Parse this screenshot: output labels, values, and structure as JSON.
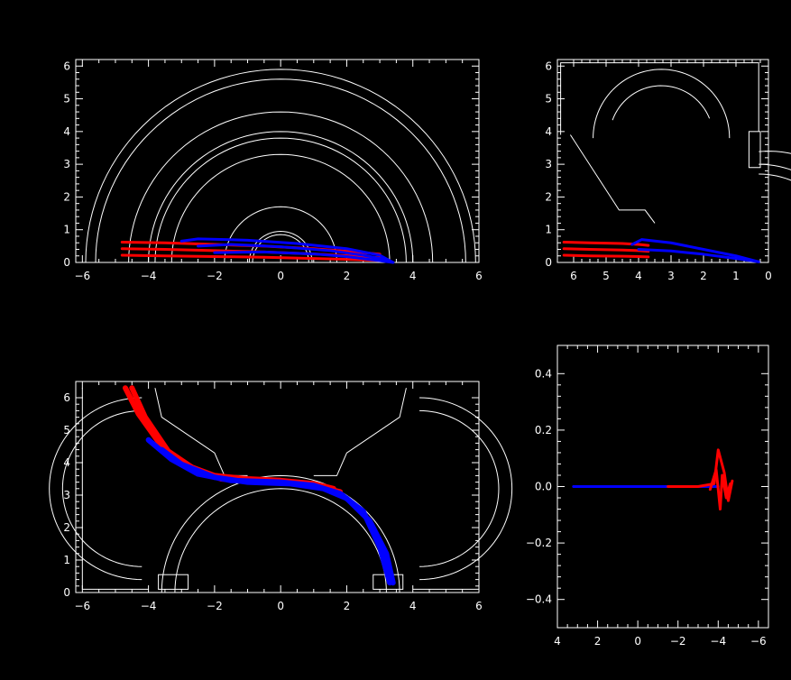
{
  "chart_data": [
    {
      "type": "line",
      "panel": "top-left",
      "xlim": [
        -6.2,
        6.0
      ],
      "ylim": [
        0,
        6.2
      ],
      "x_ticks": [
        -6,
        -4,
        -2,
        0,
        2,
        4,
        6
      ],
      "x_tick_labels": [
        "−6",
        "−4",
        "−2",
        "0",
        "2",
        "4",
        "6"
      ],
      "y_ticks": [
        0,
        1,
        2,
        3,
        4,
        5,
        6
      ],
      "y_tick_labels": [
        "0",
        "1",
        "2",
        "3",
        "4",
        "5",
        "6"
      ],
      "arc_radii": [
        0.85,
        0.95,
        1.7,
        3.3,
        3.8,
        4.0,
        4.6,
        5.6,
        5.9
      ],
      "colors": {
        "outline": "#ffffff",
        "trajectory_a": "#ff0000",
        "trajectory_b": "#0000ff"
      },
      "series": [
        {
          "color": "#ff0000",
          "x": [
            -4.8,
            -3.5,
            -2.0,
            -0.5,
            1.0,
            2.5,
            3.0
          ],
          "y": [
            0.62,
            0.6,
            0.55,
            0.5,
            0.42,
            0.3,
            0.25
          ]
        },
        {
          "color": "#ff0000",
          "x": [
            -4.8,
            -3.5,
            -2.0,
            -0.5,
            1.0,
            2.5,
            3.0
          ],
          "y": [
            0.42,
            0.4,
            0.36,
            0.32,
            0.26,
            0.18,
            0.14
          ]
        },
        {
          "color": "#ff0000",
          "x": [
            -4.8,
            -3.5,
            -2.0,
            -0.5,
            1.0,
            2.5,
            3.0
          ],
          "y": [
            0.22,
            0.2,
            0.18,
            0.16,
            0.12,
            0.08,
            0.06
          ]
        },
        {
          "color": "#0000ff",
          "x": [
            -3.0,
            -2.5,
            -1.0,
            0.5,
            2.0,
            3.0,
            3.4
          ],
          "y": [
            0.65,
            0.72,
            0.68,
            0.58,
            0.42,
            0.22,
            0.0
          ]
        },
        {
          "color": "#0000ff",
          "x": [
            -2.5,
            -1.5,
            0.0,
            1.5,
            2.5,
            3.2,
            3.4
          ],
          "y": [
            0.5,
            0.55,
            0.48,
            0.36,
            0.22,
            0.08,
            0.0
          ]
        },
        {
          "color": "#0000ff",
          "x": [
            -2.0,
            -0.5,
            1.0,
            2.0,
            2.8,
            3.4
          ],
          "y": [
            0.3,
            0.32,
            0.26,
            0.18,
            0.08,
            0.0
          ]
        }
      ]
    },
    {
      "type": "line",
      "panel": "top-right",
      "xlim": [
        6.5,
        0
      ],
      "ylim": [
        0,
        6.2
      ],
      "x_ticks": [
        6,
        5,
        4,
        3,
        2,
        1,
        0
      ],
      "x_tick_labels": [
        "6",
        "5",
        "4",
        "3",
        "2",
        "1",
        "0"
      ],
      "y_ticks": [
        0,
        1,
        2,
        3,
        4,
        5,
        6
      ],
      "y_tick_labels": [
        "0",
        "1",
        "2",
        "3",
        "4",
        "5",
        "6"
      ],
      "colors": {
        "outline": "#ffffff",
        "trajectory_a": "#ff0000",
        "trajectory_b": "#0000ff"
      },
      "series": [
        {
          "color": "#ff0000",
          "x": [
            6.3,
            5.5,
            4.5,
            4.0,
            3.7
          ],
          "y": [
            0.62,
            0.6,
            0.58,
            0.55,
            0.52
          ]
        },
        {
          "color": "#ff0000",
          "x": [
            6.3,
            5.5,
            4.5,
            4.0,
            3.7
          ],
          "y": [
            0.42,
            0.4,
            0.38,
            0.36,
            0.34
          ]
        },
        {
          "color": "#ff0000",
          "x": [
            6.3,
            5.5,
            4.5,
            4.0,
            3.7
          ],
          "y": [
            0.22,
            0.2,
            0.19,
            0.18,
            0.17
          ]
        },
        {
          "color": "#0000ff",
          "x": [
            4.2,
            3.9,
            3.0,
            2.0,
            1.0,
            0.3
          ],
          "y": [
            0.55,
            0.7,
            0.6,
            0.4,
            0.2,
            0.02
          ]
        },
        {
          "color": "#0000ff",
          "x": [
            4.0,
            3.0,
            2.0,
            1.0,
            0.3
          ],
          "y": [
            0.4,
            0.35,
            0.25,
            0.12,
            0.02
          ]
        }
      ]
    },
    {
      "type": "line",
      "panel": "bottom-left",
      "xlim": [
        -6.2,
        6.0
      ],
      "ylim": [
        0,
        6.5
      ],
      "x_ticks": [
        -6,
        -4,
        -2,
        0,
        2,
        4,
        6
      ],
      "x_tick_labels": [
        "−6",
        "−4",
        "−2",
        "0",
        "2",
        "4",
        "6"
      ],
      "y_ticks": [
        0,
        1,
        2,
        3,
        4,
        5,
        6
      ],
      "y_tick_labels": [
        "0",
        "1",
        "2",
        "3",
        "4",
        "5",
        "6"
      ],
      "colors": {
        "outline": "#ffffff",
        "trajectory_a": "#ff0000",
        "trajectory_b": "#0000ff"
      },
      "series": [
        {
          "color": "#ff0000",
          "x": [
            -4.7,
            -4.3,
            -3.6,
            -2.8,
            -2.0,
            -1.0,
            0.0,
            1.0,
            1.6
          ],
          "y": [
            6.3,
            5.5,
            4.5,
            3.9,
            3.6,
            3.5,
            3.45,
            3.35,
            3.2
          ]
        },
        {
          "color": "#ff0000",
          "x": [
            -4.5,
            -4.1,
            -3.4,
            -2.6,
            -1.8,
            -0.8,
            0.2,
            1.2,
            1.8
          ],
          "y": [
            6.3,
            5.4,
            4.35,
            3.8,
            3.5,
            3.42,
            3.38,
            3.25,
            3.1
          ]
        },
        {
          "color": "#0000ff",
          "x": [
            -4.0,
            -3.3,
            -2.5,
            -1.5,
            0.0,
            1.0,
            1.8,
            2.5,
            3.0,
            3.3
          ],
          "y": [
            4.7,
            4.1,
            3.65,
            3.45,
            3.4,
            3.3,
            3.05,
            2.5,
            1.4,
            0.3
          ]
        },
        {
          "color": "#0000ff",
          "x": [
            -3.6,
            -3.0,
            -2.0,
            -1.0,
            0.3,
            1.3,
            2.0,
            2.7,
            3.2,
            3.4
          ],
          "y": [
            4.4,
            3.95,
            3.55,
            3.4,
            3.35,
            3.2,
            2.9,
            2.2,
            1.2,
            0.3
          ]
        }
      ]
    },
    {
      "type": "line",
      "panel": "bottom-right",
      "xlim": [
        4,
        -6.5
      ],
      "ylim": [
        -0.5,
        0.5
      ],
      "x_ticks": [
        4,
        2,
        0,
        -2,
        -4,
        -6
      ],
      "x_tick_labels": [
        "4",
        "2",
        "0",
        "−2",
        "−4",
        "−6"
      ],
      "y_ticks": [
        0.4,
        0.2,
        0.0,
        -0.2,
        -0.4
      ],
      "y_tick_labels": [
        "0.4",
        "0.2",
        "0.0",
        "−0.2",
        "−0.4"
      ],
      "colors": {
        "outline": "#ffffff",
        "trajectory_a": "#ff0000",
        "trajectory_b": "#0000ff"
      },
      "series": [
        {
          "color": "#0000ff",
          "x": [
            3.2,
            1.0,
            -1.0,
            -2.0,
            -3.0,
            -4.0
          ],
          "y": [
            0.0,
            0.0,
            0.0,
            0.0,
            0.0,
            0.0
          ]
        },
        {
          "color": "#ff0000",
          "x": [
            -1.5,
            -3.0,
            -3.8,
            -4.0,
            -4.3,
            -4.5,
            -4.7
          ],
          "y": [
            0.0,
            0.0,
            0.01,
            0.13,
            0.05,
            -0.05,
            0.02
          ]
        },
        {
          "color": "#ff0000",
          "x": [
            -3.6,
            -3.9,
            -4.1,
            -4.2,
            -4.4,
            -4.6
          ],
          "y": [
            -0.01,
            0.06,
            -0.08,
            0.04,
            -0.04,
            0.01
          ]
        }
      ]
    }
  ]
}
